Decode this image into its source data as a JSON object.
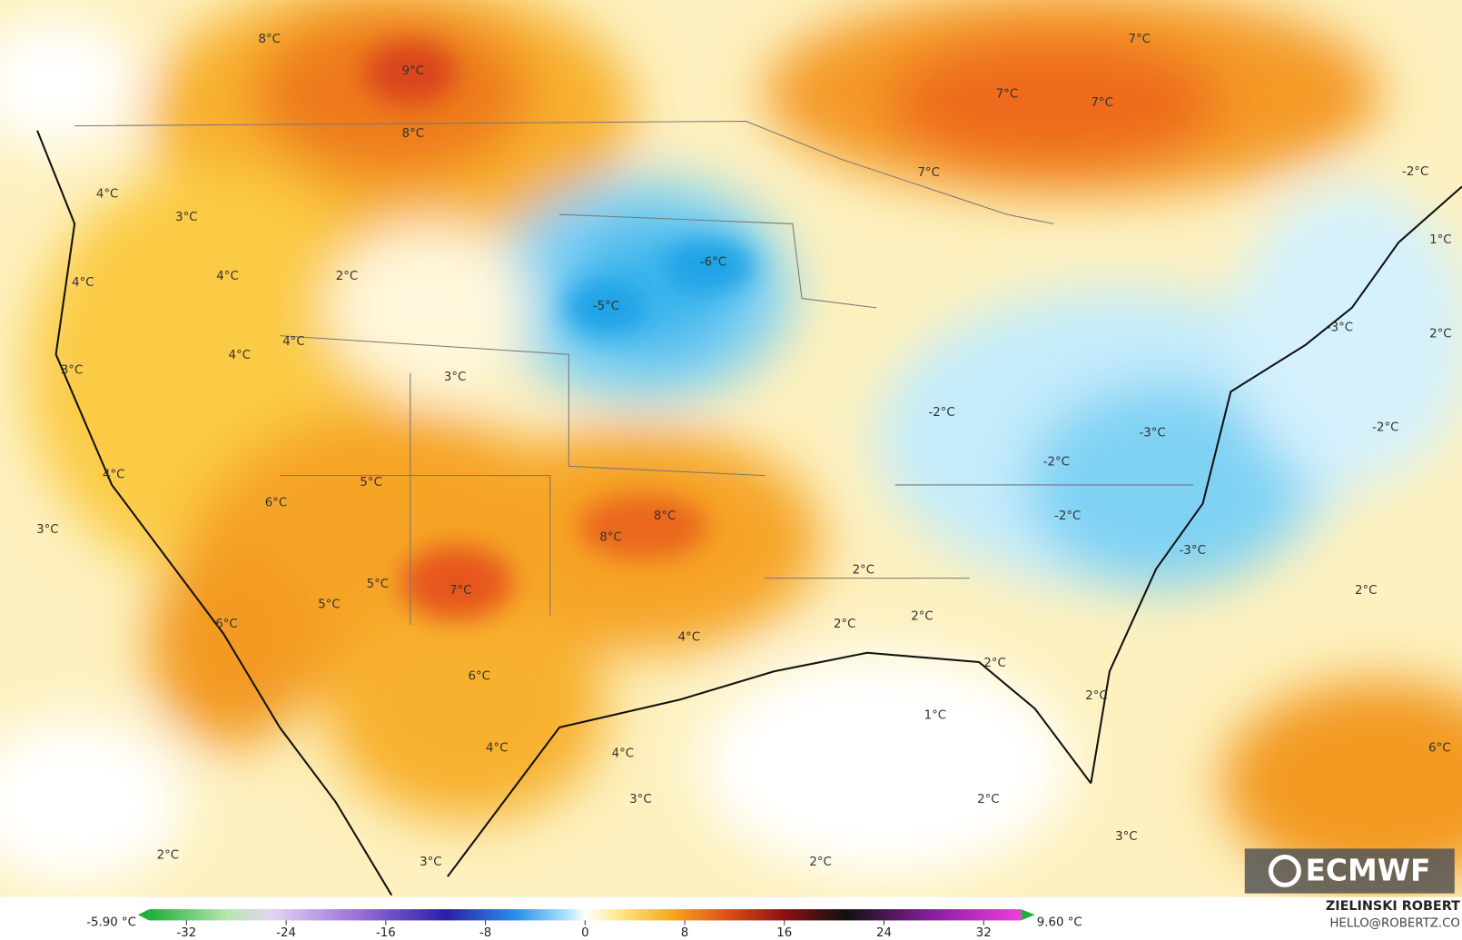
{
  "map_labels": [
    "8°C",
    "9°C",
    "7°C",
    "7°C",
    "7°C",
    "8°C",
    "7°C",
    "-2°C",
    "4°C",
    "3°C",
    "-6°C",
    "1°C",
    "4°C",
    "2°C",
    "4°C",
    "-5°C",
    "-3°C",
    "2°C",
    "4°C",
    "4°C",
    "3°C",
    "3°C",
    "-2°C",
    "-2°C",
    "-3°C",
    "-2°C",
    "4°C",
    "5°C",
    "6°C",
    "8°C",
    "-2°C",
    "3°C",
    "8°C",
    "-3°C",
    "2°C",
    "5°C",
    "7°C",
    "2°C",
    "5°C",
    "2°C",
    "6°C",
    "2°C",
    "4°C",
    "2°C",
    "6°C",
    "2°C",
    "1°C",
    "4°C",
    "6°C",
    "4°C",
    "3°C",
    "2°C",
    "3°C",
    "2°C",
    "3°C",
    "2°C"
  ],
  "colorbar": {
    "min_label": "-5.90 °C",
    "max_label": "9.60 °C",
    "ticks": [
      -32,
      -24,
      -16,
      -8,
      0,
      8,
      16,
      24,
      32
    ]
  },
  "logo": "ECMWF",
  "credits": {
    "author": "ZIELINSKI ROBERT",
    "email": "HELLO@ROBERTZ.CO"
  }
}
